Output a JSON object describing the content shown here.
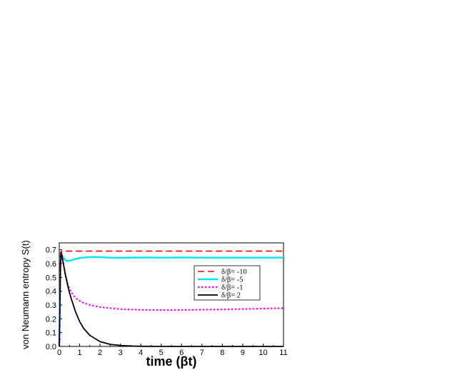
{
  "chart_data": {
    "type": "line",
    "xlabel": "time (βt)",
    "ylabel": "von Neumann entropy S(t)",
    "xlim": [
      0,
      11
    ],
    "ylim": [
      0.0,
      0.75
    ],
    "xticks": [
      0,
      1,
      2,
      3,
      4,
      5,
      6,
      7,
      8,
      9,
      10,
      11
    ],
    "yticks": [
      0.0,
      0.1,
      0.2,
      0.3,
      0.4,
      0.5,
      0.6,
      0.7
    ],
    "grid": false,
    "legend_position": "right",
    "series": [
      {
        "name": "δ/β= -10",
        "color": "#ff0000",
        "style": "dashed",
        "x": [
          0,
          0.02,
          0.04,
          0.06,
          0.1,
          0.2,
          0.5,
          1,
          2,
          3,
          4,
          5,
          6,
          7,
          8,
          9,
          10,
          11
        ],
        "y": [
          0,
          0.3,
          0.6,
          0.68,
          0.69,
          0.69,
          0.69,
          0.69,
          0.69,
          0.69,
          0.69,
          0.69,
          0.69,
          0.69,
          0.69,
          0.69,
          0.69,
          0.69
        ]
      },
      {
        "name": "δ/β= -5",
        "color": "#00e5ee",
        "style": "solid",
        "x": [
          0,
          0.03,
          0.06,
          0.1,
          0.2,
          0.35,
          0.5,
          0.7,
          1.0,
          1.3,
          1.6,
          2.0,
          2.5,
          3,
          4,
          5,
          6,
          7,
          8,
          9,
          10,
          11
        ],
        "y": [
          0,
          0.35,
          0.62,
          0.67,
          0.64,
          0.62,
          0.62,
          0.63,
          0.64,
          0.645,
          0.648,
          0.646,
          0.643,
          0.642,
          0.644,
          0.643,
          0.644,
          0.643,
          0.643,
          0.643,
          0.643,
          0.643
        ]
      },
      {
        "name": "δ/β= -1",
        "color": "#ff00ff",
        "style": "dotted",
        "x": [
          0,
          0.03,
          0.06,
          0.1,
          0.2,
          0.3,
          0.4,
          0.5,
          0.6,
          0.8,
          1.0,
          1.2,
          1.5,
          2.0,
          2.5,
          3,
          4,
          5,
          6,
          7,
          8,
          9,
          10,
          11
        ],
        "y": [
          0,
          0.3,
          0.6,
          0.68,
          0.6,
          0.52,
          0.46,
          0.42,
          0.39,
          0.35,
          0.33,
          0.315,
          0.3,
          0.285,
          0.277,
          0.27,
          0.265,
          0.263,
          0.264,
          0.266,
          0.268,
          0.271,
          0.274,
          0.277
        ]
      },
      {
        "name": "δ/β= 2",
        "color": "#000000",
        "style": "solid",
        "x": [
          0,
          0.03,
          0.06,
          0.1,
          0.2,
          0.3,
          0.4,
          0.5,
          0.6,
          0.8,
          1.0,
          1.2,
          1.5,
          2.0,
          2.5,
          3,
          3.5,
          4,
          5,
          6,
          7,
          8,
          9,
          10,
          11
        ],
        "y": [
          0,
          0.3,
          0.6,
          0.68,
          0.6,
          0.52,
          0.45,
          0.39,
          0.34,
          0.25,
          0.18,
          0.13,
          0.08,
          0.035,
          0.015,
          0.007,
          0.003,
          0.001,
          0,
          0,
          0,
          0,
          0,
          0,
          0
        ]
      }
    ]
  }
}
